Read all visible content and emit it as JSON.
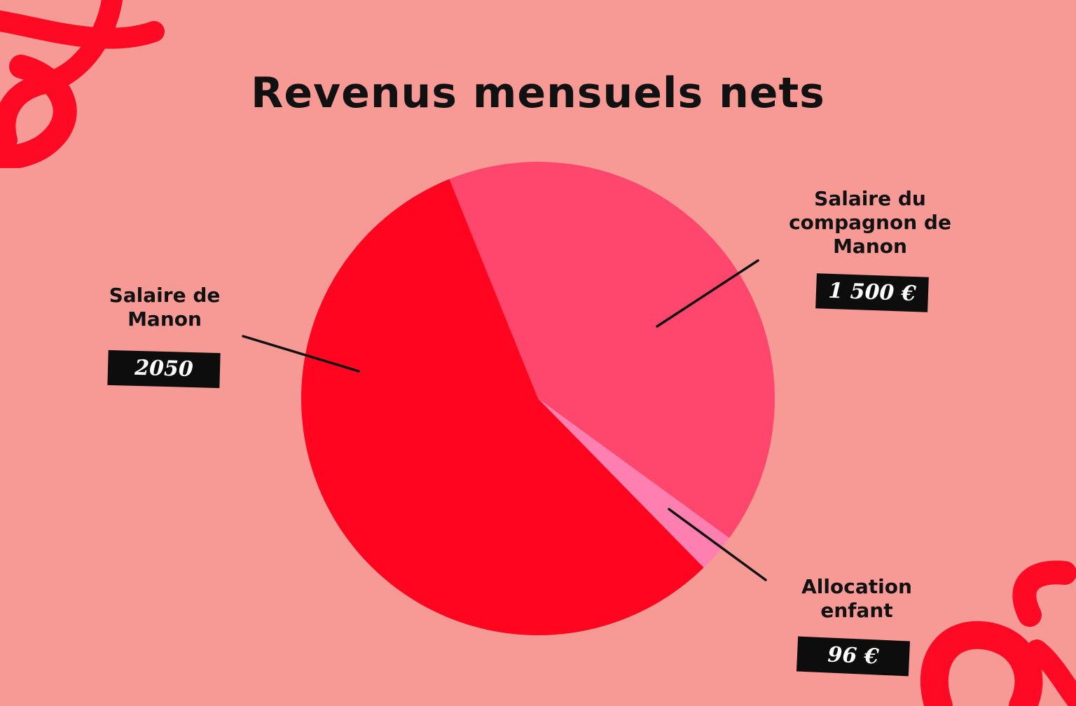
{
  "colors": {
    "background": "#f79a96",
    "salaire_manon": "#ff0520",
    "salaire_compagnon": "#ff476d",
    "allocation": "#ff80b0",
    "decoration": "#ff0a24"
  },
  "chart_data": {
    "type": "pie",
    "title": "Revenus mensuels nets",
    "slices": [
      {
        "label": "Salaire de Manon",
        "value": 2050,
        "value_label": "2050",
        "color": "#ff0520"
      },
      {
        "label": "Salaire du compagnon de Manon",
        "value": 1500,
        "value_label": "1 500 €",
        "color": "#ff476d"
      },
      {
        "label": "Allocation enfant",
        "value": 96,
        "value_label": "96 €",
        "color": "#ff80b0"
      }
    ]
  }
}
